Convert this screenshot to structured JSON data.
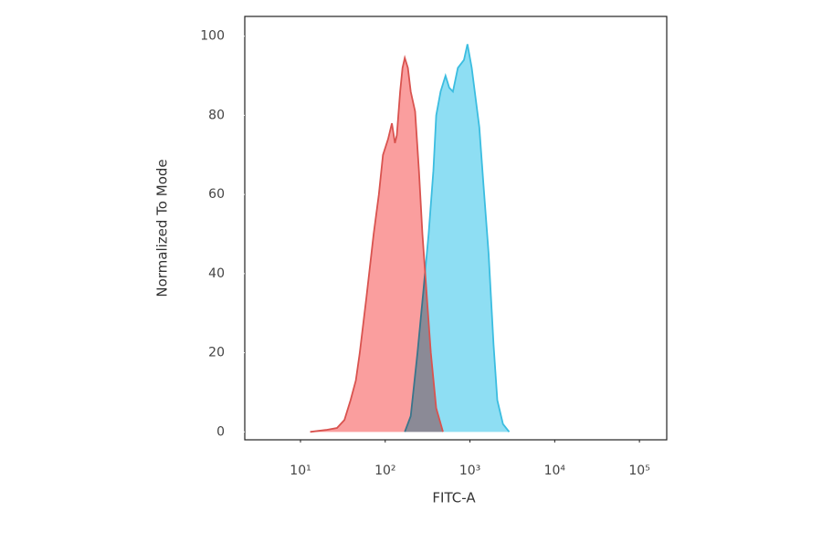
{
  "chart_data": {
    "type": "histogram-overlay",
    "x_label": "FITC-A",
    "y_label": "Normalized To Mode",
    "xscale": "log",
    "xlim": [
      2.2,
      210000
    ],
    "xticks": [
      {
        "value": 10,
        "label": "10¹"
      },
      {
        "value": 100,
        "label": "10²"
      },
      {
        "value": 1000,
        "label": "10³"
      },
      {
        "value": 10000,
        "label": "10⁴"
      },
      {
        "value": 100000,
        "label": "10⁵"
      }
    ],
    "ylim": [
      -2,
      105
    ],
    "yticks": [
      0,
      20,
      40,
      60,
      80,
      100
    ],
    "series": [
      {
        "color": "#3bbde0",
        "fill": "#82daf2",
        "x": [
          170,
          200,
          240,
          280,
          325,
          370,
          400,
          450,
          515,
          570,
          630,
          720,
          850,
          935,
          1050,
          1290,
          1450,
          1660,
          1900,
          2100,
          2450,
          2900
        ],
        "values": [
          0,
          4,
          20,
          35,
          50,
          66,
          80,
          86,
          90,
          87,
          86,
          92,
          94,
          98,
          92,
          77,
          62,
          45,
          22,
          8,
          2,
          0
        ]
      },
      {
        "color": "#d9534f",
        "fill": "#f99494",
        "x": [
          13,
          20,
          27,
          33,
          39,
          45,
          50,
          60,
          73,
          84,
          94,
          108,
          120,
          130,
          137,
          150,
          160,
          170,
          185,
          200,
          225,
          250,
          275,
          310,
          345,
          400,
          480
        ],
        "values": [
          0,
          0.5,
          1,
          3,
          8,
          13,
          20,
          34,
          50,
          60,
          70,
          74,
          78,
          73,
          75,
          86,
          92,
          94.5,
          92,
          86,
          81,
          66,
          50,
          34,
          20,
          6,
          0
        ]
      }
    ]
  }
}
